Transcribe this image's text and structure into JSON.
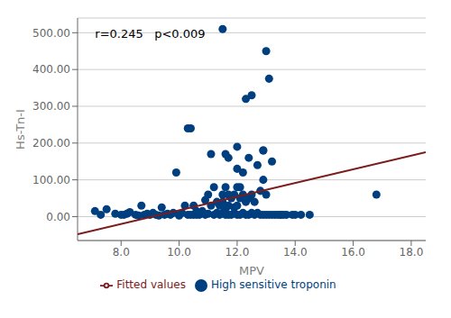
{
  "chart_data": {
    "type": "scatter",
    "title": "",
    "xlabel": "MPV",
    "ylabel": "Hs-Tn-I",
    "annotation": "r=0.245   p<0.009",
    "xlim": [
      6.5,
      18.5
    ],
    "ylim": [
      -65,
      540
    ],
    "xticks": [
      {
        "value": 8.0,
        "label": "8.0"
      },
      {
        "value": 10.0,
        "label": "10.0"
      },
      {
        "value": 12.0,
        "label": "12.0"
      },
      {
        "value": 14.0,
        "label": "14.0"
      },
      {
        "value": 16.0,
        "label": "16.0"
      },
      {
        "value": 18.0,
        "label": "18.0"
      }
    ],
    "yticks": [
      {
        "value": 0,
        "label": "0.00"
      },
      {
        "value": 100,
        "label": "100.00"
      },
      {
        "value": 200,
        "label": "200.00"
      },
      {
        "value": 300,
        "label": "300.00"
      },
      {
        "value": 400,
        "label": "400.00"
      },
      {
        "value": 500,
        "label": "500.00"
      }
    ],
    "grid": "y",
    "legend": "bottom",
    "series": [
      {
        "name": "High sensitive troponin",
        "type": "scatter",
        "marker": "circle",
        "color": "#003f7f",
        "x": [
          7.1,
          7.3,
          7.5,
          7.8,
          8.0,
          8.1,
          8.2,
          8.3,
          8.5,
          8.6,
          8.7,
          8.8,
          8.9,
          9.0,
          9.1,
          9.2,
          9.3,
          9.4,
          9.5,
          9.6,
          9.7,
          9.8,
          9.9,
          10.0,
          10.0,
          10.1,
          10.2,
          10.3,
          10.3,
          10.4,
          10.4,
          10.5,
          10.5,
          10.6,
          10.6,
          10.7,
          10.7,
          10.8,
          10.9,
          10.9,
          11.0,
          11.0,
          11.1,
          11.1,
          11.2,
          11.2,
          11.3,
          11.3,
          11.4,
          11.4,
          11.5,
          11.5,
          11.5,
          11.5,
          11.6,
          11.6,
          11.6,
          11.6,
          11.7,
          11.7,
          11.7,
          11.7,
          11.8,
          11.8,
          11.9,
          11.9,
          11.9,
          12.0,
          12.0,
          12.0,
          12.0,
          12.0,
          12.1,
          12.1,
          12.1,
          12.2,
          12.2,
          12.2,
          12.3,
          12.3,
          12.3,
          12.4,
          12.4,
          12.4,
          12.5,
          12.5,
          12.5,
          12.6,
          12.6,
          12.7,
          12.7,
          12.8,
          12.8,
          12.9,
          12.9,
          12.9,
          12.9,
          13.0,
          13.0,
          13.0,
          13.1,
          13.1,
          13.2,
          13.2,
          13.3,
          13.4,
          13.5,
          13.5,
          13.6,
          13.7,
          13.9,
          14.0,
          14.2,
          14.5,
          16.8
        ],
        "values": [
          15,
          5,
          20,
          8,
          5,
          5,
          8,
          12,
          5,
          3,
          30,
          5,
          8,
          5,
          10,
          5,
          3,
          25,
          5,
          8,
          5,
          10,
          120,
          5,
          3,
          10,
          30,
          5,
          240,
          5,
          240,
          5,
          30,
          15,
          5,
          5,
          10,
          15,
          5,
          45,
          8,
          60,
          170,
          30,
          5,
          80,
          10,
          40,
          5,
          30,
          510,
          60,
          40,
          10,
          5,
          20,
          80,
          170,
          5,
          30,
          160,
          60,
          5,
          50,
          10,
          60,
          25,
          5,
          30,
          80,
          130,
          190,
          5,
          50,
          80,
          10,
          60,
          120,
          5,
          40,
          320,
          5,
          50,
          160,
          10,
          60,
          330,
          5,
          40,
          10,
          140,
          5,
          70,
          5,
          100,
          180,
          180,
          5,
          60,
          450,
          5,
          375,
          5,
          150,
          5,
          5,
          5,
          5,
          5,
          5,
          5,
          5,
          5,
          5,
          60
        ]
      },
      {
        "name": "Fitted values",
        "type": "line",
        "line_style": "solid",
        "color": "#7b1c1c",
        "x": [
          6.5,
          18.5
        ],
        "values": [
          -48,
          175
        ]
      }
    ]
  }
}
